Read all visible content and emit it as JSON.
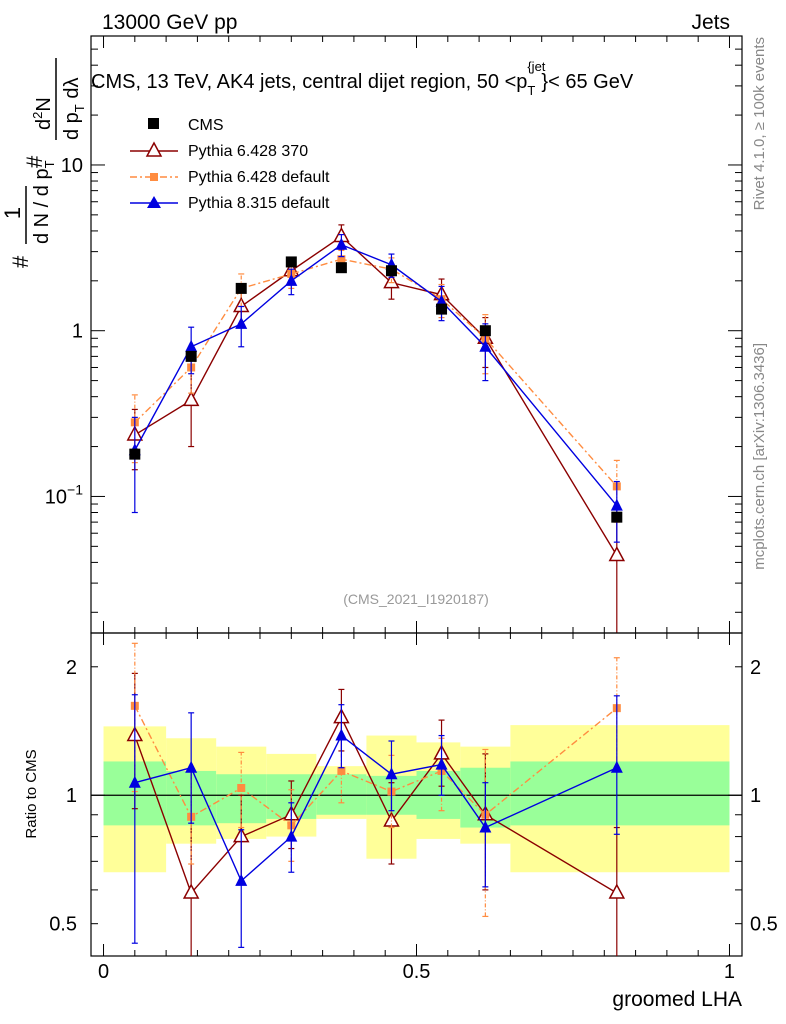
{
  "header": {
    "left": "13000 GeV pp",
    "right": "Jets",
    "side_rivet": "Rivet 4.1.0, ≥ 100k events",
    "side_mcplots": "mcplots.cern.ch [arXiv:1306.3436]",
    "watermark": "(CMS_2021_I1920187)"
  },
  "chart_data": [
    {
      "type": "line",
      "panel": "main",
      "title": "CMS, 13 TeV, AK4 jets, central dijet region, 50 <p_T^{jet}< 65 GeV",
      "title_parts": {
        "prefix": "CMS, 13 TeV, AK4 jets, central dijet region, 50 <p",
        "sub": "T",
        "sup": "{jet",
        "suffix": "}< 65 GeV"
      },
      "ylabel": "1/(dN/dp_T) d²N/(dp_T dλ)",
      "ylabel_parts": {
        "hash": "#",
        "one": "1",
        "den": "d N / d p",
        "den_sub": "T",
        "num": "d",
        "num_sup": "2",
        "num2": "N",
        "den2": "d p",
        "den2_sub": "T",
        "den2_tail": " dλ"
      },
      "yscale": "log",
      "ylim": [
        0.015,
        60
      ],
      "xlim": [
        -0.02,
        1.02
      ],
      "yticks": [
        {
          "value": 0.1,
          "base": "10",
          "exp": "−1"
        },
        {
          "value": 1,
          "label": "1"
        },
        {
          "value": 10,
          "label": "10"
        }
      ],
      "legend": [
        {
          "name": "CMS"
        },
        {
          "name": "Pythia 6.428 370"
        },
        {
          "name": "Pythia 6.428 default"
        },
        {
          "name": "Pythia 8.315 default"
        }
      ],
      "series": [
        {
          "name": "CMS",
          "color": "#000000",
          "marker": "square",
          "line": "none",
          "x": [
            0.05,
            0.14,
            0.22,
            0.3,
            0.38,
            0.46,
            0.54,
            0.61,
            0.82
          ],
          "values": [
            0.18,
            0.7,
            1.8,
            2.6,
            2.4,
            2.3,
            1.35,
            1.0,
            0.075
          ]
        },
        {
          "name": "Pythia 6.428 370",
          "color": "#8b0000",
          "marker": "open-triangle",
          "line": "solid",
          "x": [
            0.05,
            0.14,
            0.22,
            0.3,
            0.38,
            0.46,
            0.54,
            0.61,
            0.82
          ],
          "values": [
            0.235,
            0.38,
            1.4,
            2.3,
            3.7,
            1.95,
            1.65,
            0.9,
            0.044
          ],
          "err_low": [
            0.09,
            0.18,
            0.3,
            0.4,
            0.6,
            0.4,
            0.35,
            0.3,
            0.04
          ],
          "err_high": [
            0.1,
            0.2,
            0.35,
            0.4,
            0.65,
            0.4,
            0.4,
            0.3,
            0.03
          ]
        },
        {
          "name": "Pythia 6.428 default",
          "color": "#ff8c40",
          "marker": "filled-square-small",
          "line": "dashdot",
          "x": [
            0.05,
            0.14,
            0.22,
            0.3,
            0.38,
            0.46,
            0.54,
            0.61,
            0.82
          ],
          "values": [
            0.28,
            0.6,
            1.8,
            2.2,
            2.7,
            2.35,
            1.55,
            0.9,
            0.115
          ],
          "err_low": [
            0.12,
            0.18,
            0.4,
            0.4,
            0.35,
            0.4,
            0.35,
            0.35,
            0.045
          ],
          "err_high": [
            0.13,
            0.18,
            0.4,
            0.4,
            0.35,
            0.4,
            0.35,
            0.35,
            0.05
          ]
        },
        {
          "name": "Pythia 8.315 default",
          "color": "#0000e0",
          "marker": "filled-triangle",
          "line": "solid",
          "x": [
            0.05,
            0.14,
            0.22,
            0.3,
            0.38,
            0.46,
            0.54,
            0.61,
            0.82
          ],
          "values": [
            0.19,
            0.8,
            1.1,
            2.0,
            3.3,
            2.5,
            1.5,
            0.8,
            0.088
          ],
          "err_low": [
            0.11,
            0.25,
            0.3,
            0.35,
            0.5,
            0.4,
            0.35,
            0.3,
            0.035
          ],
          "err_high": [
            0.11,
            0.25,
            0.3,
            0.35,
            0.5,
            0.4,
            0.35,
            0.3,
            0.035
          ]
        }
      ]
    },
    {
      "type": "line",
      "panel": "ratio",
      "ylabel": "Ratio to CMS",
      "xlabel": "groomed LHA",
      "yscale": "log",
      "ylim": [
        0.42,
        2.4
      ],
      "xlim": [
        -0.02,
        1.02
      ],
      "xticks": [
        0,
        0.5,
        1
      ],
      "xtick_labels": [
        "0",
        "0.5",
        "1"
      ],
      "yticks": [
        0.5,
        1,
        2
      ],
      "ytick_labels": [
        "0.5",
        "1",
        "2"
      ],
      "bands": {
        "x_edges": [
          0.0,
          0.1,
          0.18,
          0.26,
          0.34,
          0.42,
          0.5,
          0.57,
          0.65,
          1.0
        ],
        "inner_low": [
          0.85,
          0.85,
          0.86,
          0.88,
          0.9,
          0.9,
          0.88,
          0.84,
          0.85
        ],
        "inner_high": [
          1.2,
          1.14,
          1.12,
          1.12,
          1.12,
          1.11,
          1.14,
          1.16,
          1.2
        ],
        "outer_low": [
          0.66,
          0.77,
          0.79,
          0.8,
          0.88,
          0.71,
          0.79,
          0.77,
          0.66
        ],
        "outer_high": [
          1.45,
          1.36,
          1.3,
          1.25,
          1.17,
          1.38,
          1.33,
          1.3,
          1.46
        ],
        "inner_color": "#99ff99",
        "outer_color": "#ffff99"
      },
      "series": [
        {
          "name": "Pythia 6.428 370",
          "color": "#8b0000",
          "marker": "open-triangle",
          "line": "solid",
          "x": [
            0.05,
            0.14,
            0.22,
            0.3,
            0.38,
            0.46,
            0.54,
            0.61,
            0.82
          ],
          "values": [
            1.38,
            0.59,
            0.8,
            0.9,
            1.52,
            0.87,
            1.25,
            0.9,
            0.59
          ],
          "err_low": [
            0.45,
            0.25,
            0.18,
            0.15,
            0.25,
            0.18,
            0.2,
            0.3,
            0.17
          ],
          "err_high": [
            0.55,
            0.55,
            0.2,
            0.18,
            0.25,
            0.2,
            0.25,
            0.35,
            0.25
          ]
        },
        {
          "name": "Pythia 6.428 default",
          "color": "#ff8c40",
          "marker": "filled-square-small",
          "line": "dashdot",
          "x": [
            0.05,
            0.14,
            0.22,
            0.3,
            0.38,
            0.46,
            0.54,
            0.61,
            0.82
          ],
          "values": [
            1.62,
            0.89,
            1.04,
            0.85,
            1.14,
            1.02,
            1.14,
            0.9,
            1.6
          ],
          "err_low": [
            0.6,
            0.2,
            0.2,
            0.15,
            0.18,
            0.18,
            0.22,
            0.38,
            0.45
          ],
          "err_high": [
            0.65,
            0.25,
            0.22,
            0.18,
            0.22,
            0.22,
            0.22,
            0.38,
            0.5
          ]
        },
        {
          "name": "Pythia 8.315 default",
          "color": "#0000e0",
          "marker": "filled-triangle",
          "line": "solid",
          "x": [
            0.05,
            0.14,
            0.22,
            0.3,
            0.38,
            0.46,
            0.54,
            0.61,
            0.82
          ],
          "values": [
            1.07,
            1.16,
            0.63,
            0.8,
            1.38,
            1.12,
            1.18,
            0.84,
            1.16
          ],
          "err_low": [
            0.62,
            0.3,
            0.19,
            0.14,
            0.22,
            0.2,
            0.18,
            0.23,
            0.35
          ],
          "err_high": [
            0.65,
            0.4,
            0.2,
            0.16,
            0.25,
            0.22,
            0.2,
            0.23,
            0.55
          ]
        }
      ]
    }
  ]
}
